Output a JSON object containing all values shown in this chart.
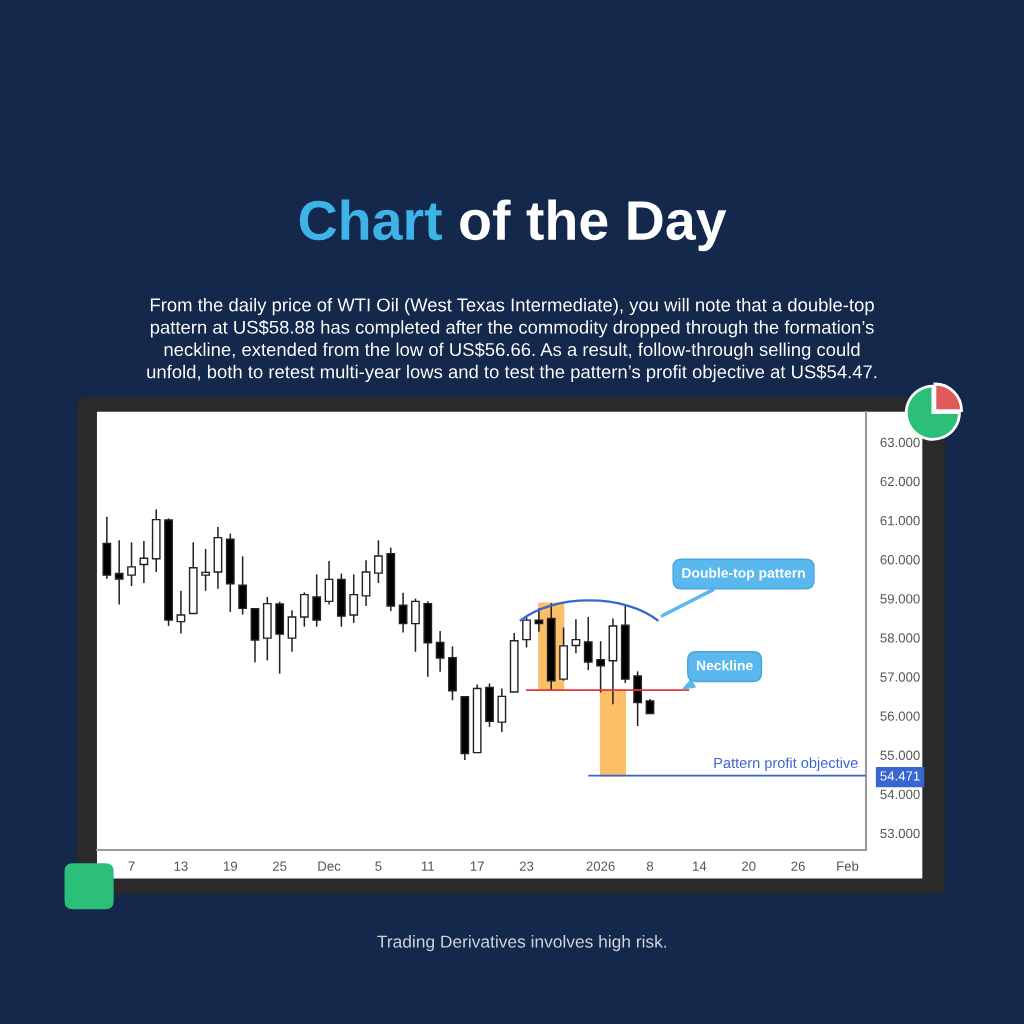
{
  "chart_data": {
    "type": "candlestick",
    "title": "Chart of the Day",
    "subtitle": "From the daily price of WTI Oil (West Texas Intermediate), you will note that a double-top\npattern at US$58.88 has completed after the commodity dropped through the formation’s\nneckline, extended from the low of US$56.66. As a result, follow-through selling could\nunfold, both to retest multi-year lows and to test the pattern’s profit objective at US$54.47.",
    "categories": [
      null,
      null,
      "7",
      null,
      null,
      null,
      "13",
      null,
      null,
      null,
      "19",
      null,
      null,
      null,
      "25",
      null,
      null,
      null,
      "Dec",
      null,
      null,
      null,
      "5",
      null,
      null,
      null,
      "11",
      null,
      null,
      null,
      "17",
      null,
      null,
      null,
      "23",
      null,
      null,
      null,
      null,
      null,
      "2026",
      null,
      null,
      null,
      "8",
      null,
      null,
      null,
      "14",
      null,
      null,
      null,
      "20",
      null,
      null,
      null,
      "26",
      null,
      null,
      null,
      "Feb",
      null
    ],
    "ohlc": [
      [
        60.41,
        61.09,
        59.51,
        59.6
      ],
      [
        59.64,
        60.49,
        58.85,
        59.5
      ],
      [
        59.6,
        60.44,
        59.32,
        59.81
      ],
      [
        59.87,
        60.47,
        59.4,
        60.03
      ],
      [
        60.02,
        61.28,
        59.68,
        61.02
      ],
      [
        61.01,
        61.05,
        58.3,
        58.45
      ],
      [
        58.41,
        59.2,
        58.11,
        58.58
      ],
      [
        58.62,
        60.44,
        58.62,
        59.79
      ],
      [
        59.6,
        60.27,
        59.2,
        59.67
      ],
      [
        59.68,
        60.83,
        59.25,
        60.56
      ],
      [
        60.52,
        60.66,
        58.66,
        59.38
      ],
      [
        59.34,
        60.08,
        58.59,
        58.75
      ],
      [
        58.74,
        58.76,
        57.37,
        57.94
      ],
      [
        57.99,
        59.04,
        57.42,
        58.87
      ],
      [
        58.86,
        58.92,
        57.08,
        58.09
      ],
      [
        57.99,
        58.7,
        57.64,
        58.53
      ],
      [
        58.53,
        59.16,
        58.28,
        59.1
      ],
      [
        59.04,
        59.62,
        58.28,
        58.45
      ],
      [
        58.93,
        59.96,
        58.85,
        59.49
      ],
      [
        59.49,
        59.64,
        58.28,
        58.55
      ],
      [
        58.58,
        59.62,
        58.38,
        59.1
      ],
      [
        59.07,
        59.98,
        58.81,
        59.68
      ],
      [
        59.65,
        60.49,
        59.4,
        60.09
      ],
      [
        60.15,
        60.3,
        58.68,
        58.81
      ],
      [
        58.83,
        59.15,
        58.13,
        58.36
      ],
      [
        58.36,
        59.0,
        57.64,
        58.93
      ],
      [
        58.87,
        58.93,
        57.0,
        57.87
      ],
      [
        57.88,
        58.17,
        57.13,
        57.48
      ],
      [
        57.49,
        57.78,
        56.4,
        56.64
      ],
      [
        56.49,
        56.5,
        54.87,
        55.04
      ],
      [
        55.06,
        56.8,
        55.06,
        56.7
      ],
      [
        56.73,
        56.83,
        55.72,
        55.86
      ],
      [
        55.84,
        56.7,
        55.59,
        56.5
      ],
      [
        56.61,
        58.12,
        56.61,
        57.92
      ],
      [
        57.95,
        58.53,
        57.75,
        58.45
      ],
      [
        58.45,
        58.75,
        58.15,
        58.36
      ],
      [
        58.49,
        58.88,
        56.64,
        56.9
      ],
      [
        56.94,
        58.26,
        56.9,
        57.79
      ],
      [
        57.8,
        58.47,
        57.6,
        57.95
      ],
      [
        57.89,
        58.53,
        57.17,
        57.38
      ],
      [
        57.44,
        57.91,
        56.6,
        57.28
      ],
      [
        57.41,
        58.49,
        56.3,
        58.3
      ],
      [
        58.32,
        58.83,
        56.84,
        56.94
      ],
      [
        57.02,
        57.14,
        55.74,
        56.34
      ],
      [
        56.38,
        56.43,
        56.06,
        56.06
      ],
      null,
      null,
      null,
      null,
      null,
      null,
      null,
      null,
      null,
      null,
      null,
      null,
      null,
      null,
      null,
      null,
      null
    ],
    "ylim": [
      52.57,
      63.77
    ],
    "yticks": [
      {
        "value": 53,
        "label": "53.000"
      },
      {
        "value": 54,
        "label": "54.000"
      },
      {
        "value": 54.471,
        "label": "54.471"
      },
      {
        "value": 55,
        "label": "55.000"
      },
      {
        "value": 56,
        "label": "56.000"
      },
      {
        "value": 57,
        "label": "57.000"
      },
      {
        "value": 58,
        "label": "58.000"
      },
      {
        "value": 59,
        "label": "59.000"
      },
      {
        "value": 60,
        "label": "60.000"
      },
      {
        "value": 61,
        "label": "61.000"
      },
      {
        "value": 62,
        "label": "62.000"
      },
      {
        "value": 63,
        "label": "63.000"
      }
    ],
    "grid": false,
    "ref_lines": [
      {
        "axis": "y",
        "value": 56.66,
        "label": "Neckline",
        "color": "#e0383e"
      },
      {
        "axis": "y",
        "value": 54.471,
        "label": "Pattern profit objective",
        "color": "#3a66d0"
      }
    ],
    "series": [
      {
        "type": "bar",
        "color": "#fbb44e",
        "values": [
          null,
          null,
          null,
          null,
          null,
          null,
          null,
          null,
          null,
          null,
          null,
          null,
          null,
          null,
          null,
          null,
          null,
          null,
          null,
          null,
          null,
          null,
          null,
          null,
          null,
          null,
          null,
          null,
          null,
          null,
          null,
          null,
          null,
          null,
          null,
          null,
          2.22,
          null,
          null,
          null,
          null,
          -2.19,
          null,
          null,
          null,
          null,
          null,
          null,
          null,
          null,
          null,
          null,
          null,
          null,
          null,
          null,
          null,
          null,
          null,
          null,
          null,
          null
        ],
        "base": [
          null,
          null,
          null,
          null,
          null,
          null,
          null,
          null,
          null,
          null,
          null,
          null,
          null,
          null,
          null,
          null,
          null,
          null,
          null,
          null,
          null,
          null,
          null,
          null,
          null,
          null,
          null,
          null,
          null,
          null,
          null,
          null,
          null,
          null,
          null,
          null,
          56.66,
          null,
          null,
          null,
          null,
          56.66,
          null,
          null,
          null,
          null,
          null,
          null,
          null,
          null,
          null,
          null,
          null,
          null,
          null,
          null,
          null,
          null,
          null,
          null,
          null,
          null
        ]
      }
    ],
    "annotations": [
      "Double-top pattern",
      "Trading Derivatives involves high risk."
    ]
  }
}
